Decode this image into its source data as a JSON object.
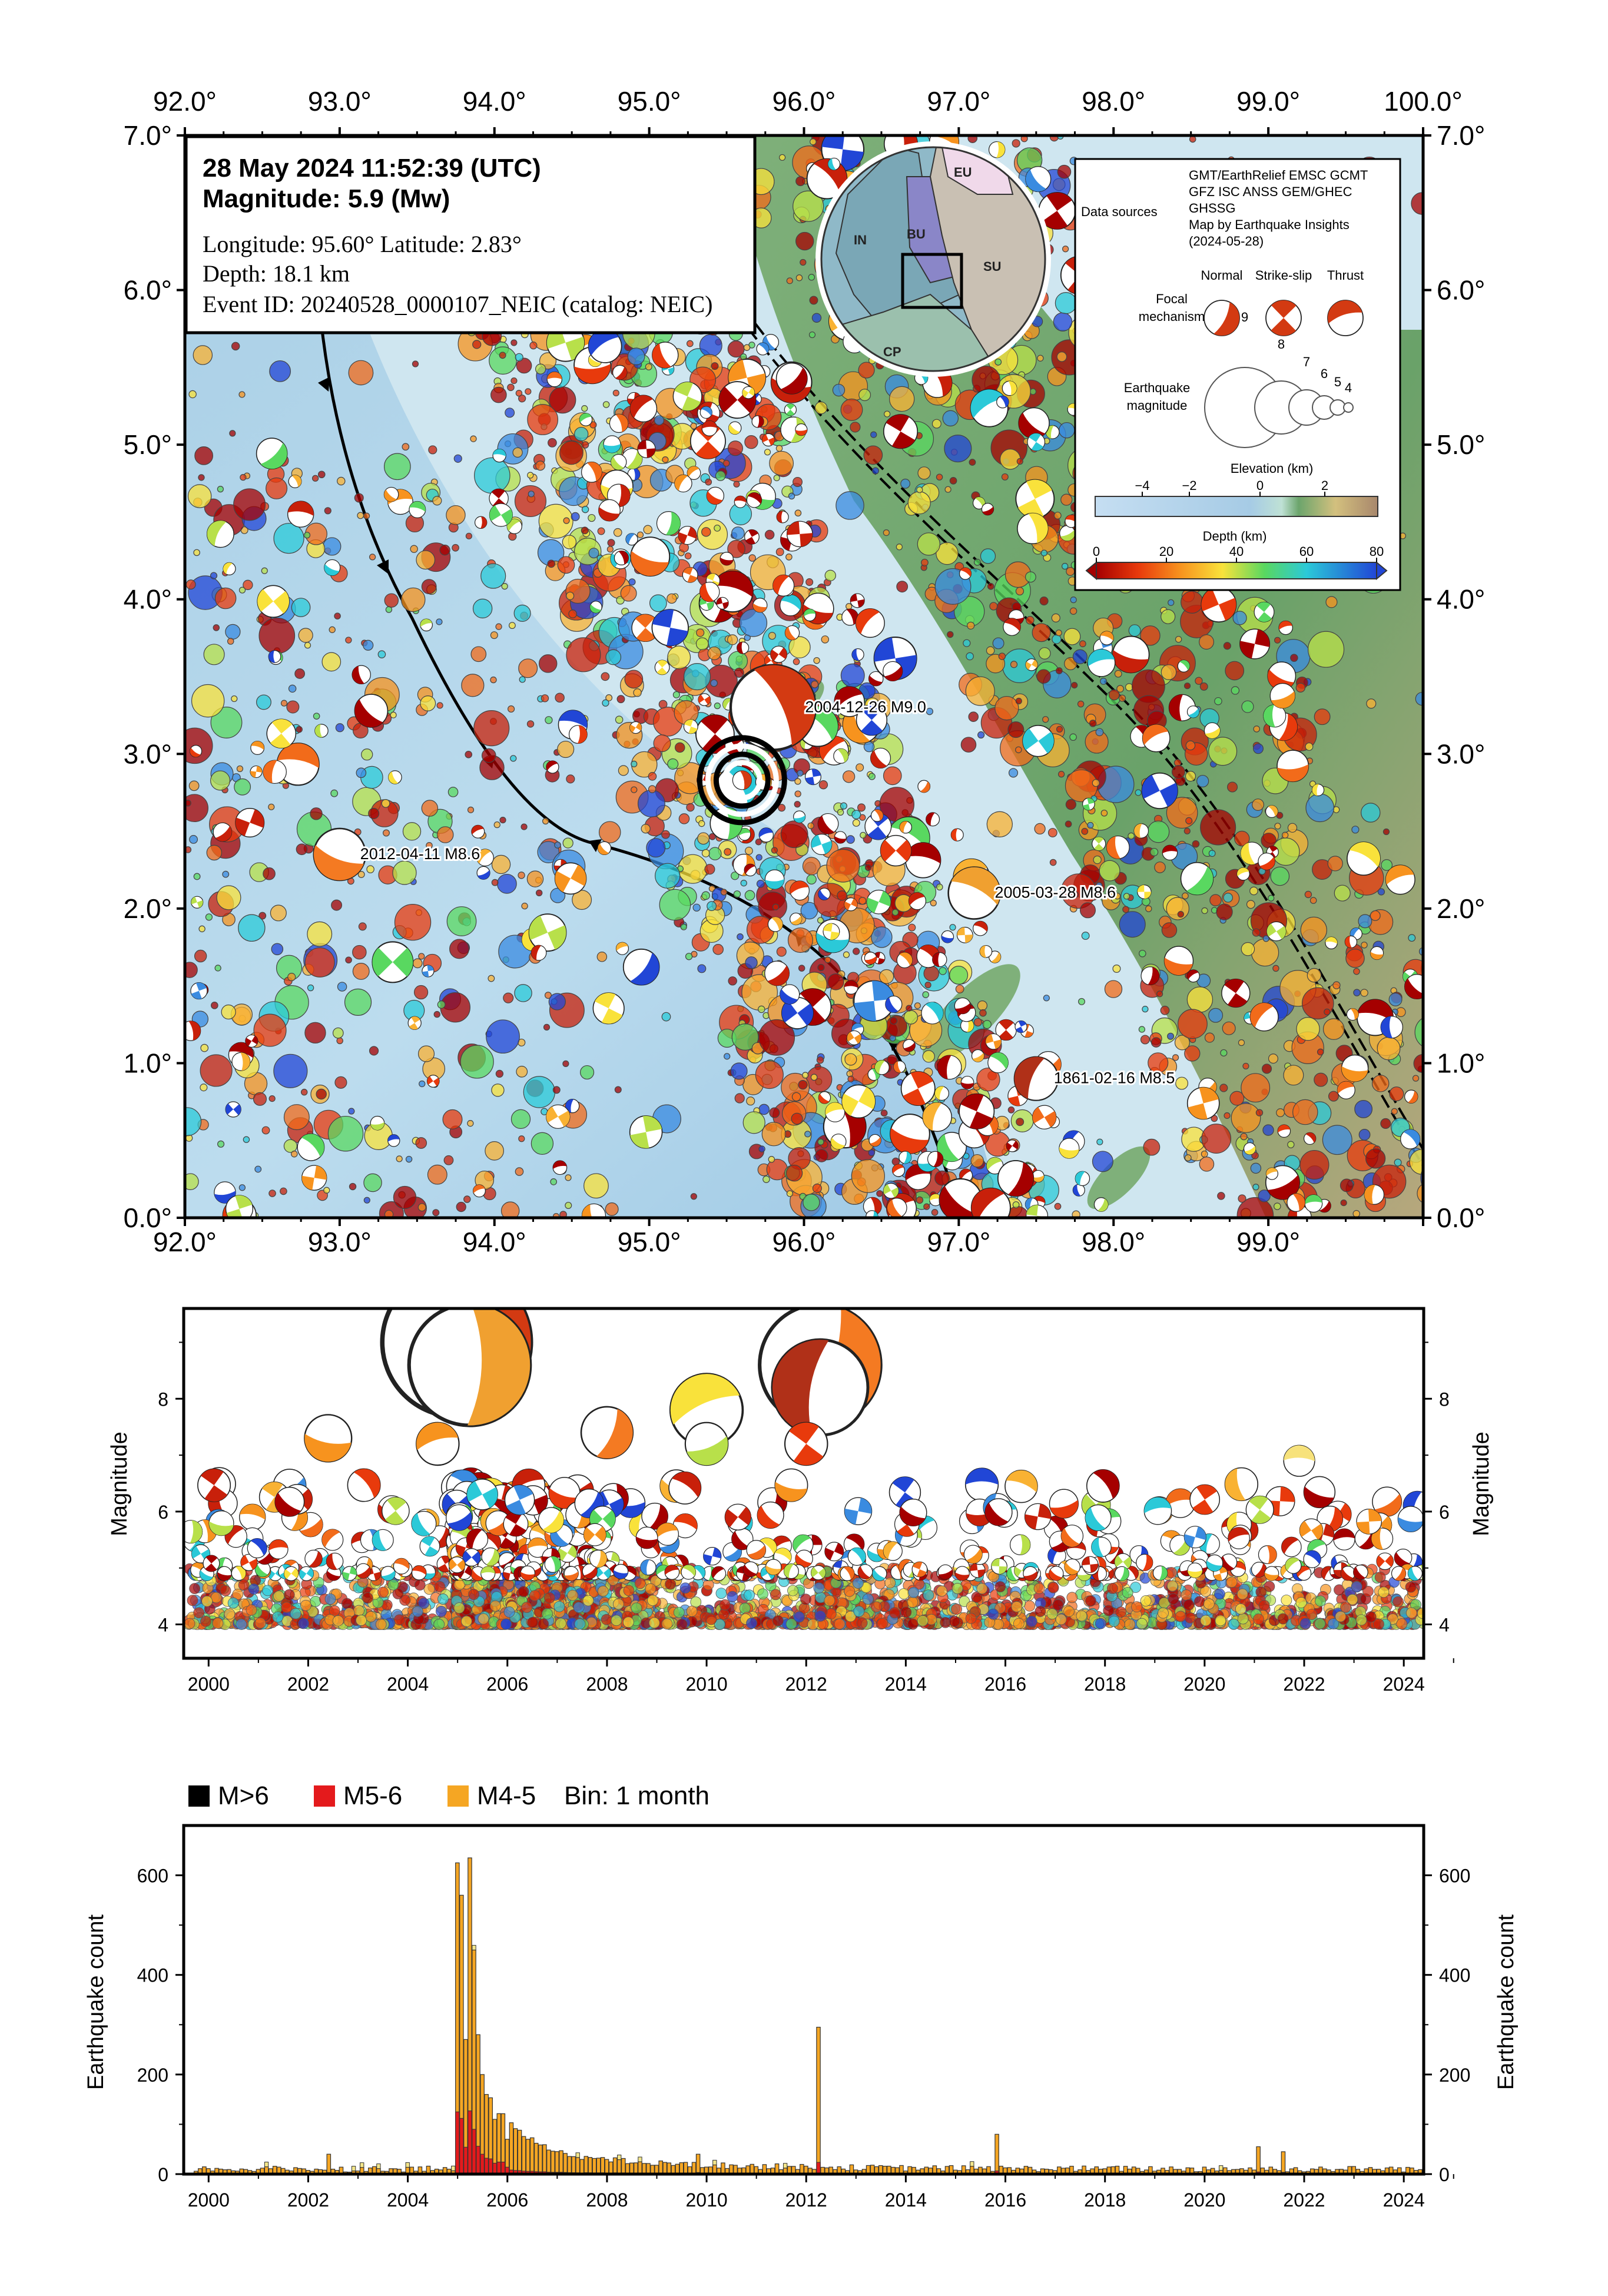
{
  "event": {
    "datetime": "28 May 2024 11:52:39 (UTC)",
    "magnitude": "Magnitude: 5.9 (Mw)",
    "location": "Longitude: 95.60°  Latitude: 2.83°",
    "depth": "Depth: 18.1 km",
    "event_id": "Event ID: 20240528_0000107_NEIC (catalog: NEIC)"
  },
  "map": {
    "lon_ticks": [
      "92.0°",
      "93.0°",
      "94.0°",
      "95.0°",
      "96.0°",
      "97.0°",
      "98.0°",
      "99.0°",
      "100.0°"
    ],
    "lat_ticks": [
      "0.0°",
      "1.0°",
      "2.0°",
      "3.0°",
      "4.0°",
      "5.0°",
      "6.0°",
      "7.0°"
    ],
    "lon_range": [
      92,
      100
    ],
    "lat_range": [
      0,
      7
    ],
    "epicenter": {
      "lon": 95.6,
      "lat": 2.83
    },
    "historic": [
      {
        "label": "2004-12-26 M9.0",
        "lon": 95.8,
        "lat": 3.3,
        "mag": 9.0
      },
      {
        "label": "2012-04-11 M8.6",
        "lon": 93.0,
        "lat": 2.35,
        "mag": 8.6
      },
      {
        "label": "2005-03-28 M8.6",
        "lon": 97.1,
        "lat": 2.1,
        "mag": 8.6
      },
      {
        "label": "1861-02-16 M8.5",
        "lon": 97.5,
        "lat": 0.9,
        "mag": 8.5
      }
    ],
    "inset_plates": [
      "EU",
      "IN",
      "BU",
      "SU",
      "CP"
    ],
    "colors": {
      "ocean": "#b9d8ea",
      "land": "#6fa56f",
      "trench": "#000000"
    }
  },
  "legend": {
    "data_sources_label": "Data sources",
    "data_sources_text": [
      "GMT/EarthRelief EMSC GCMT",
      "GFZ ISC ANSS GEM/GHEC",
      "GHSSG",
      "Map by Earthquake Insights",
      "(2024-05-28)"
    ],
    "focal_label": [
      "Focal",
      "mechanism"
    ],
    "focal_types": [
      "Normal",
      "Strike-slip",
      "Thrust"
    ],
    "magnitude_label": [
      "Earthquake",
      "magnitude"
    ],
    "magnitude_values": [
      "9",
      "8",
      "7",
      "6",
      "5",
      "4"
    ],
    "elevation_title": "Elevation (km)",
    "elevation_ticks": [
      "−4",
      "−2",
      "0",
      "2"
    ],
    "depth_title": "Depth (km)",
    "depth_ticks": [
      "0",
      "20",
      "40",
      "60",
      "80"
    ]
  },
  "timeseries": {
    "ylabel": "Magnitude",
    "y_ticks": [
      "4",
      "6",
      "8"
    ],
    "x_ticks": [
      "2000",
      "2002",
      "2004",
      "2006",
      "2008",
      "2010",
      "2012",
      "2014",
      "2016",
      "2018",
      "2020",
      "2022",
      "2024"
    ],
    "x_range": [
      1999.5,
      2024.4
    ],
    "y_range": [
      3.4,
      9.6
    ],
    "large_events": [
      {
        "t": 2004.98,
        "mag": 9.0
      },
      {
        "t": 2005.24,
        "mag": 8.6
      },
      {
        "t": 2012.28,
        "mag": 8.6
      },
      {
        "t": 2012.28,
        "mag": 8.2
      },
      {
        "t": 2010.0,
        "mag": 7.8
      },
      {
        "t": 2010.0,
        "mag": 7.2
      },
      {
        "t": 2002.4,
        "mag": 7.3
      },
      {
        "t": 2008.0,
        "mag": 7.4
      },
      {
        "t": 2004.6,
        "mag": 7.2
      },
      {
        "t": 2012.0,
        "mag": 7.2
      },
      {
        "t": 2021.9,
        "mag": 6.9
      }
    ]
  },
  "histogram": {
    "legend": [
      {
        "label": "M>6",
        "color": "#000000"
      },
      {
        "label": "M5-6",
        "color": "#e41a1c"
      },
      {
        "label": "M4-5",
        "color": "#f5a623"
      }
    ],
    "bin_label": "Bin: 1 month",
    "ylabel": "Earthquake count",
    "y_ticks": [
      "0",
      "200",
      "400",
      "600"
    ],
    "x_ticks": [
      "2000",
      "2002",
      "2004",
      "2006",
      "2008",
      "2010",
      "2012",
      "2014",
      "2016",
      "2018",
      "2020",
      "2022",
      "2024"
    ],
    "y_max": 700,
    "peaks": [
      {
        "t": 2002.4,
        "count": 40
      },
      {
        "t": 2004.99,
        "count": 625
      },
      {
        "t": 2005.08,
        "count": 560
      },
      {
        "t": 2005.25,
        "count": 635
      },
      {
        "t": 2005.33,
        "count": 450
      },
      {
        "t": 2005.42,
        "count": 280
      },
      {
        "t": 2005.5,
        "count": 200
      },
      {
        "t": 2005.6,
        "count": 160
      },
      {
        "t": 2005.75,
        "count": 110
      },
      {
        "t": 2006.0,
        "count": 70
      },
      {
        "t": 2009.8,
        "count": 40
      },
      {
        "t": 2012.28,
        "count": 295
      },
      {
        "t": 2015.8,
        "count": 80
      },
      {
        "t": 2021.1,
        "count": 55
      },
      {
        "t": 2021.6,
        "count": 45
      }
    ]
  }
}
